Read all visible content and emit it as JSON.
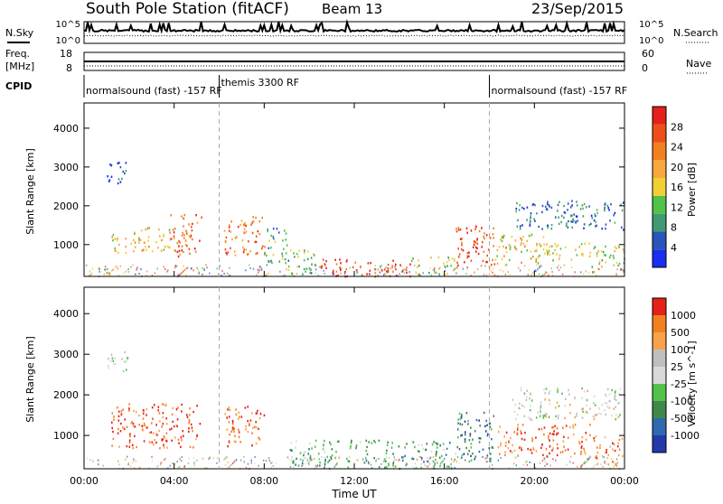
{
  "header": {
    "station": "South Pole Station (fitACF)",
    "beam": "Beam 13",
    "date": "23/Sep/2015"
  },
  "summary_panel": {
    "nsky_label": "N.Sky",
    "nsearch_label": "N.Search",
    "noise_tick_top": "10^5",
    "noise_tick_bottom": "10^0",
    "freq_label_line1": "Freq.",
    "freq_label_line2": "[MHz]",
    "freq_ticks": [
      "18",
      "8"
    ],
    "nave_label": "Nave",
    "nave_ticks": [
      "60",
      "0"
    ],
    "cpid_label": "CPID"
  },
  "cpid_segments": [
    {
      "label": "normalsound (fast) -157 RF",
      "start_hour": 0.0
    },
    {
      "label": "themis 3300 RF",
      "start_hour": 6.0
    },
    {
      "label": "normalsound (fast) -157 RF",
      "start_hour": 18.0
    }
  ],
  "colors": {
    "power": [
      "#1a2ef0",
      "#2a55b8",
      "#3f9a72",
      "#52c24a",
      "#f2cf33",
      "#f7a93b",
      "#f3801f",
      "#ee4f1a",
      "#e42119"
    ],
    "velocity": [
      "#e42119",
      "#f3801f",
      "#f9a24a",
      "#bfbfbf",
      "#d9d9d9",
      "#52c24a",
      "#3f8a4a",
      "#2d6ab0",
      "#233aa8"
    ]
  },
  "chart_data": [
    {
      "type": "heatmap",
      "quantity": "Power",
      "xlabel": "",
      "ylabel": "Slant Range [km]",
      "xlim": [
        "00:00",
        "00:00"
      ],
      "ylim": [
        180,
        4650
      ],
      "x_ticks": [
        "00:00",
        "04:00",
        "08:00",
        "12:00",
        "16:00",
        "20:00",
        "00:00"
      ],
      "y_ticks": [
        "1000",
        "2000",
        "3000",
        "4000"
      ],
      "colorbar": {
        "label": "Power [dB]",
        "range": [
          0,
          32
        ],
        "ticks": [
          "4",
          "8",
          "12",
          "16",
          "20",
          "24",
          "28"
        ]
      },
      "regions": [
        {
          "t0": 0.3,
          "t1": 1.2,
          "r0": 200,
          "r1": 450,
          "level": 0.4
        },
        {
          "t0": 1.0,
          "t1": 2.0,
          "r0": 2600,
          "r1": 3150,
          "level": 0.15
        },
        {
          "t0": 1.2,
          "t1": 2.5,
          "r0": 750,
          "r1": 1350,
          "level": 0.55
        },
        {
          "t0": 2.5,
          "t1": 3.8,
          "r0": 850,
          "r1": 1500,
          "level": 0.6
        },
        {
          "t0": 3.8,
          "t1": 5.2,
          "r0": 700,
          "r1": 1800,
          "level": 0.8
        },
        {
          "t0": 6.2,
          "t1": 8.0,
          "r0": 750,
          "r1": 1750,
          "level": 0.75
        },
        {
          "t0": 8.0,
          "t1": 9.0,
          "r0": 500,
          "r1": 1500,
          "level": 0.3
        },
        {
          "t0": 9.0,
          "t1": 10.5,
          "r0": 250,
          "r1": 900,
          "level": 0.35
        },
        {
          "t0": 10.5,
          "t1": 14.5,
          "r0": 200,
          "r1": 650,
          "level": 0.9
        },
        {
          "t0": 14.5,
          "t1": 16.5,
          "r0": 250,
          "r1": 700,
          "level": 0.45
        },
        {
          "t0": 16.5,
          "t1": 18.2,
          "r0": 350,
          "r1": 1500,
          "level": 0.85
        },
        {
          "t0": 18.2,
          "t1": 20.5,
          "r0": 500,
          "r1": 1300,
          "level": 0.55
        },
        {
          "t0": 20.5,
          "t1": 22.5,
          "r0": 600,
          "r1": 1100,
          "level": 0.5
        },
        {
          "t0": 19.0,
          "t1": 24.0,
          "r0": 1400,
          "r1": 2150,
          "level": 0.2
        },
        {
          "t0": 22.5,
          "t1": 24.0,
          "r0": 300,
          "r1": 1000,
          "level": 0.45
        }
      ]
    },
    {
      "type": "heatmap",
      "quantity": "Velocity",
      "xlabel": "Time UT",
      "ylabel": "Slant Range [km]",
      "xlim": [
        "00:00",
        "00:00"
      ],
      "ylim": [
        180,
        4650
      ],
      "x_ticks": [
        "00:00",
        "04:00",
        "08:00",
        "12:00",
        "16:00",
        "20:00",
        "00:00"
      ],
      "y_ticks": [
        "1000",
        "2000",
        "3000",
        "4000"
      ],
      "colorbar": {
        "label": "Velocity [m s^-1]",
        "ticks": [
          "1000",
          "500",
          "100",
          "25",
          "-25",
          "-100",
          "-500",
          "-1000"
        ]
      },
      "regions": [
        {
          "t0": 1.0,
          "t1": 2.0,
          "r0": 2600,
          "r1": 3150,
          "level": 0.45
        },
        {
          "t0": 1.2,
          "t1": 5.2,
          "r0": 700,
          "r1": 1800,
          "level": 0.12
        },
        {
          "t0": 6.2,
          "t1": 8.0,
          "r0": 750,
          "r1": 1750,
          "level": 0.15
        },
        {
          "t0": 9.0,
          "t1": 16.5,
          "r0": 200,
          "r1": 900,
          "level": 0.65
        },
        {
          "t0": 16.5,
          "t1": 18.2,
          "r0": 350,
          "r1": 1600,
          "level": 0.8
        },
        {
          "t0": 18.2,
          "t1": 22.5,
          "r0": 500,
          "r1": 1300,
          "level": 0.15
        },
        {
          "t0": 19.0,
          "t1": 24.0,
          "r0": 1400,
          "r1": 2200,
          "level": 0.45
        },
        {
          "t0": 22.5,
          "t1": 24.0,
          "r0": 300,
          "r1": 1000,
          "level": 0.2
        }
      ]
    }
  ]
}
